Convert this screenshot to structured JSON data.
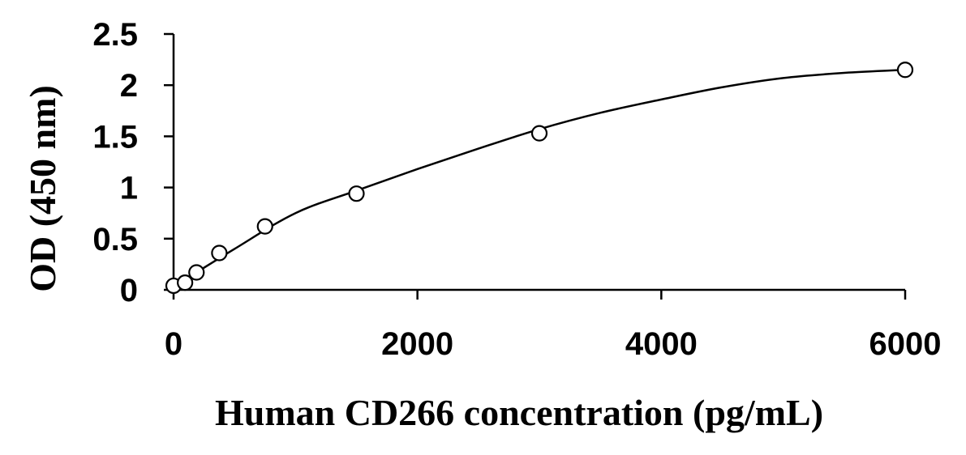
{
  "chart_data": {
    "type": "scatter",
    "title": "",
    "xlabel": "Human CD266 concentration (pg/mL)",
    "ylabel": "OD (450 nm)",
    "xlim": [
      0,
      6000
    ],
    "ylim": [
      0,
      2.5
    ],
    "x_ticks": [
      0,
      2000,
      4000,
      6000
    ],
    "x_tick_labels": [
      "0",
      "2000",
      "4000",
      "6000"
    ],
    "y_ticks": [
      0,
      0.5,
      1,
      1.5,
      2,
      2.5
    ],
    "y_tick_labels": [
      "0",
      "0.5",
      "1",
      "1.5",
      "2",
      "2.5"
    ],
    "grid": false,
    "legend": "none",
    "series": [
      {
        "marker": "open-circle",
        "x": [
          0,
          94,
          188,
          375,
          750,
          1500,
          3000,
          6000
        ],
        "y": [
          0.04,
          0.07,
          0.17,
          0.36,
          0.62,
          0.94,
          1.53,
          2.15
        ]
      }
    ],
    "fit_curve": {
      "type": "polynomial",
      "x": [
        0,
        500,
        1000,
        1500,
        2000,
        2500,
        3000,
        3500,
        4000,
        4500,
        5000,
        5500,
        6000
      ],
      "y": [
        0.03,
        0.4,
        0.75,
        0.97,
        1.18,
        1.38,
        1.57,
        1.73,
        1.86,
        1.98,
        2.07,
        2.12,
        2.15
      ]
    },
    "colors": {
      "axis": "#000000",
      "marker_stroke": "#000000",
      "marker_fill": "#ffffff",
      "curve": "#000000"
    }
  }
}
